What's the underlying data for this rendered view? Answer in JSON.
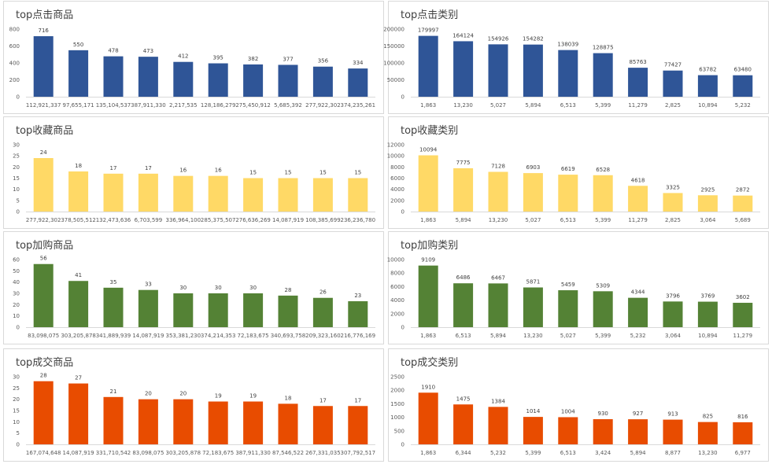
{
  "palette": {
    "blue": "#2f5597",
    "yellow": "#ffd966",
    "green": "#548235",
    "orange": "#e84c00"
  },
  "chart_data": [
    {
      "type": "bar",
      "title": "top点击商品",
      "color": "blue",
      "categories": [
        "112,921,337",
        "97,655,171",
        "135,104,537",
        "387,911,330",
        "2,217,535",
        "128,186,279",
        "275,450,912",
        "5,685,392",
        "277,922,302",
        "374,235,261"
      ],
      "values": [
        716,
        550,
        478,
        473,
        412,
        395,
        382,
        377,
        356,
        334
      ],
      "y_ticks": [
        "0",
        "200",
        "400",
        "600",
        "800"
      ],
      "ylim": [
        0,
        800
      ],
      "grid": false
    },
    {
      "type": "bar",
      "title": "top点击类别",
      "color": "blue",
      "categories": [
        "1,863",
        "13,230",
        "5,027",
        "5,894",
        "6,513",
        "5,399",
        "11,279",
        "2,825",
        "10,894",
        "5,232"
      ],
      "values": [
        179997,
        164124,
        154926,
        154282,
        138039,
        128875,
        85763,
        77427,
        63782,
        63480
      ],
      "y_ticks": [
        "0",
        "50000",
        "100000",
        "150000",
        "200000"
      ],
      "ylim": [
        0,
        200000
      ],
      "grid": false
    },
    {
      "type": "bar",
      "title": "top收藏商品",
      "color": "yellow",
      "categories": [
        "277,922,302",
        "378,505,512",
        "132,473,636",
        "6,703,599",
        "336,964,100",
        "285,375,507",
        "276,636,269",
        "14,087,919",
        "108,385,699",
        "236,236,780"
      ],
      "values": [
        24,
        18,
        17,
        17,
        16,
        16,
        15,
        15,
        15,
        15
      ],
      "y_ticks": [
        "0",
        "5",
        "10",
        "15",
        "20",
        "25",
        "30"
      ],
      "ylim": [
        0,
        30
      ],
      "grid": false
    },
    {
      "type": "bar",
      "title": "top收藏类别",
      "color": "yellow",
      "categories": [
        "1,863",
        "5,894",
        "13,230",
        "5,027",
        "6,513",
        "5,399",
        "11,279",
        "2,825",
        "3,064",
        "5,689"
      ],
      "values": [
        10094,
        7775,
        7128,
        6903,
        6619,
        6528,
        4618,
        3325,
        2925,
        2872
      ],
      "y_ticks": [
        "0",
        "2000",
        "4000",
        "6000",
        "8000",
        "10000",
        "12000"
      ],
      "ylim": [
        0,
        12000
      ],
      "grid": false
    },
    {
      "type": "bar",
      "title": "top加购商品",
      "color": "green",
      "categories": [
        "83,098,075",
        "303,205,878",
        "341,889,939",
        "14,087,919",
        "353,381,230",
        "374,214,353",
        "72,183,675",
        "340,693,758",
        "209,323,160",
        "216,776,169"
      ],
      "values": [
        56,
        41,
        35,
        33,
        30,
        30,
        30,
        28,
        26,
        23
      ],
      "y_ticks": [
        "0",
        "10",
        "20",
        "30",
        "40",
        "50",
        "60"
      ],
      "ylim": [
        0,
        60
      ],
      "grid": false
    },
    {
      "type": "bar",
      "title": "top加购类别",
      "color": "green",
      "categories": [
        "1,863",
        "6,513",
        "5,894",
        "13,230",
        "5,027",
        "5,399",
        "5,232",
        "3,064",
        "10,894",
        "11,279"
      ],
      "values": [
        9109,
        6486,
        6467,
        5871,
        5459,
        5309,
        4344,
        3796,
        3769,
        3602
      ],
      "y_ticks": [
        "0",
        "2000",
        "4000",
        "6000",
        "8000",
        "10000"
      ],
      "ylim": [
        0,
        10000
      ],
      "grid": false
    },
    {
      "type": "bar",
      "title": "top成交商品",
      "color": "orange",
      "categories": [
        "167,074,648",
        "14,087,919",
        "331,710,542",
        "83,098,075",
        "303,205,878",
        "72,183,675",
        "387,911,330",
        "87,546,522",
        "267,331,035",
        "307,792,517"
      ],
      "values": [
        28,
        27,
        21,
        20,
        20,
        19,
        19,
        18,
        17,
        17
      ],
      "y_ticks": [
        "0",
        "5",
        "10",
        "15",
        "20",
        "25",
        "30"
      ],
      "ylim": [
        0,
        30
      ],
      "grid": false
    },
    {
      "type": "bar",
      "title": "top成交类别",
      "color": "orange",
      "categories": [
        "1,863",
        "6,344",
        "5,232",
        "5,399",
        "6,513",
        "3,424",
        "5,894",
        "8,877",
        "13,230",
        "6,977"
      ],
      "values": [
        1910,
        1475,
        1384,
        1014,
        1004,
        930,
        927,
        913,
        825,
        816
      ],
      "y_ticks": [
        "0",
        "500",
        "1000",
        "1500",
        "2000",
        "2500"
      ],
      "ylim": [
        0,
        2500
      ],
      "grid": false
    }
  ]
}
